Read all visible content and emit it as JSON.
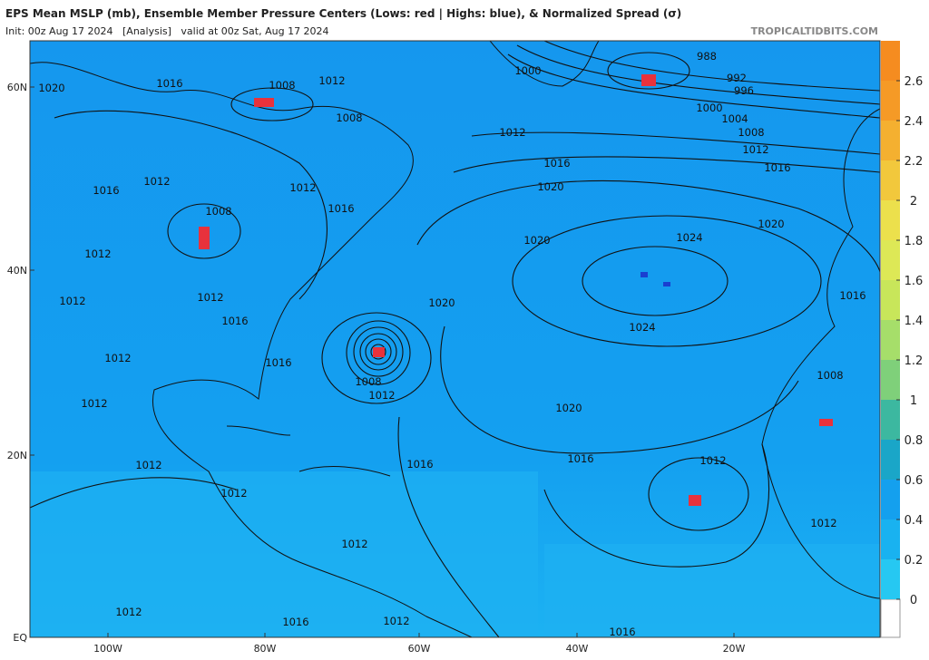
{
  "header": {
    "title": "EPS Mean MSLP (mb), Ensemble Member Pressure Centers (Lows: red | Highs: blue), & Normalized Spread (σ)",
    "subtitle": "Init: 00z Aug 17 2024   [Analysis]   valid at 00z Sat, Aug 17 2024",
    "source": "TROPICALTIDBITS.COM"
  },
  "map": {
    "lat_labels": [
      "60N",
      "40N",
      "20N",
      "EQ"
    ],
    "lon_labels": [
      "100W",
      "80W",
      "60W",
      "40W",
      "20W"
    ],
    "isobar_labels": [
      "1020",
      "1016",
      "1008",
      "1012",
      "1008",
      "1000",
      "988",
      "992",
      "996",
      "1000",
      "1004",
      "1008",
      "1012",
      "1016",
      "1012",
      "1016",
      "1020",
      "1020",
      "1024",
      "1020",
      "1016",
      "1012",
      "1008",
      "1016",
      "1012",
      "1012",
      "1012",
      "1012",
      "1016",
      "1020",
      "1024",
      "1016",
      "1008",
      "1012",
      "1020",
      "1016",
      "1016",
      "1012",
      "1012",
      "1012",
      "1012",
      "1012",
      "1012",
      "1016",
      "1008",
      "1012",
      "1012",
      "1016",
      "1012",
      "1016"
    ]
  },
  "colorbar": {
    "ticks": [
      0,
      0.2,
      0.4,
      0.6,
      0.8,
      1,
      1.2,
      1.4,
      1.6,
      1.8,
      2,
      2.2,
      2.4,
      2.6
    ]
  }
}
